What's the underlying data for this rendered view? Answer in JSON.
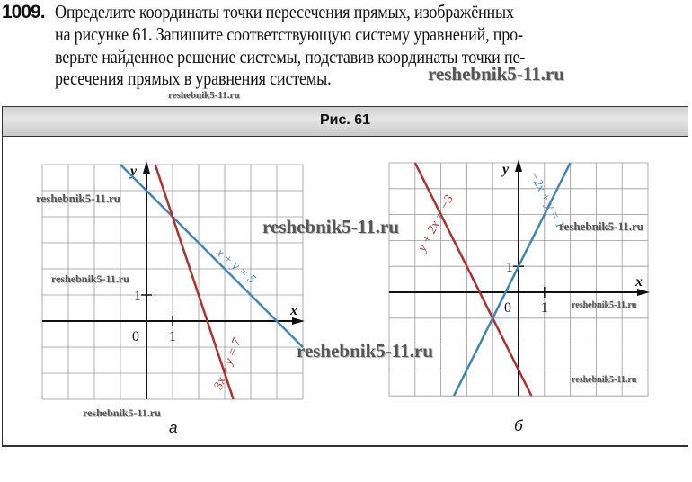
{
  "exercise": {
    "number": "1009.",
    "lines": [
      "Определите координаты точки пересечения прямых, изображённых",
      "на рисунке 61. Запишите соответствующую систему уравнений, про-",
      "верьте найденное решение системы, подставив координаты точки пе-",
      "ресечения прямых в уравнения системы."
    ]
  },
  "figure": {
    "caption": "Рис. 61",
    "panels": [
      {
        "label": "а",
        "x_axis_label": "x",
        "y_axis_label": "y",
        "origin_label": "0",
        "x_tick_label": "1",
        "y_tick_label": "1",
        "xlim": [
          -4,
          6
        ],
        "ylim": [
          -3,
          6
        ],
        "grid": true,
        "lines": [
          {
            "equation": "x + y = 5",
            "a": 1,
            "b": 1,
            "c": 5,
            "color": "#3f86b8"
          },
          {
            "equation": "3x + y = 7",
            "a": 3,
            "b": 1,
            "c": 7,
            "color": "#b0302a"
          }
        ]
      },
      {
        "label": "б",
        "x_axis_label": "x",
        "y_axis_label": "y",
        "origin_label": "0",
        "x_tick_label": "1",
        "y_tick_label": "1",
        "xlim": [
          -5,
          5
        ],
        "ylim": [
          -4,
          5
        ],
        "grid": true,
        "lines": [
          {
            "equation": "y + 2x = −3",
            "a": 2,
            "b": 1,
            "c": -3,
            "color": "#b0302a"
          },
          {
            "equation": "−2x + y = 1",
            "a": -2,
            "b": 1,
            "c": 1,
            "color": "#3f86b8"
          }
        ]
      }
    ]
  },
  "watermarks": [
    "reshebnik5-11.ru",
    "reshebnik5-11.ru",
    "reshebnik5-11.ru",
    "reshebnik5-11.ru",
    "reshebnik5-11.ru",
    "reshebnik5-11.ru",
    "reshebnik5-11.ru",
    "reshebnik5-11.ru",
    "reshebnik5-11.ru",
    "reshebnik5-11.ru"
  ]
}
